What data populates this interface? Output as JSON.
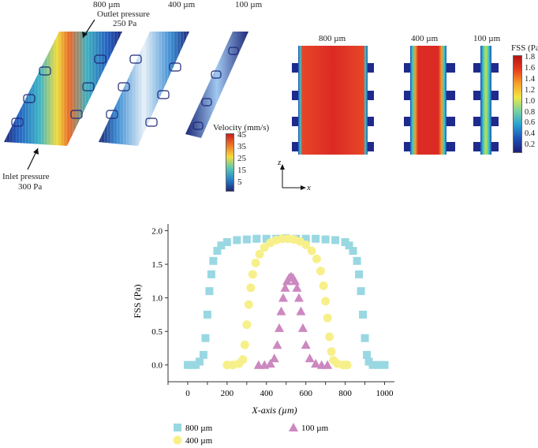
{
  "panel_a": {
    "channel_labels": [
      "800 µm",
      "400 µm",
      "100 µm"
    ],
    "outlet_label_1": "Outlet pressure",
    "outlet_label_2": "250 Pa",
    "inlet_label_1": "Inlet pressure",
    "inlet_label_2": "300 Pa",
    "colorbar_title": "Velocity (mm/s)",
    "colorbar_ticks": [
      "45",
      "35",
      "25",
      "15",
      "5"
    ],
    "colorbar_colors": [
      "#c81e1e",
      "#f07828",
      "#f5dc3c",
      "#5ac8b4",
      "#2882c8",
      "#1e2878"
    ]
  },
  "panel_b": {
    "channel_labels": [
      "800 µm",
      "400 µm",
      "100 µm"
    ],
    "colorbar_title": "FSS (Pa)",
    "colorbar_ticks": [
      "1.8",
      "1.6",
      "1.4",
      "1.2",
      "1.0",
      "0.8",
      "0.6",
      "0.4",
      "0.2"
    ],
    "colorbar_colors": [
      "#b41414",
      "#e63c1e",
      "#f5a028",
      "#f0e646",
      "#78d2a0",
      "#28a0d2",
      "#1e50b4",
      "#1e1e78"
    ],
    "axis_z": "z",
    "axis_x": "x"
  },
  "chart_data": {
    "type": "scatter",
    "title": "",
    "xlabel": "X-axis (µm)",
    "ylabel": "FSS (Pa)",
    "xlim": [
      -100,
      1050
    ],
    "ylim": [
      -0.25,
      2.1
    ],
    "xticks": [
      0,
      200,
      400,
      600,
      800,
      1000
    ],
    "yticks": [
      0.0,
      0.5,
      1.0,
      1.5,
      2.0
    ],
    "xtick_labels": [
      "0",
      "200",
      "400",
      "600",
      "800",
      "1000"
    ],
    "ytick_labels": [
      "0.0",
      "0.5",
      "1.0",
      "1.5",
      "2.0"
    ],
    "legend_position": "bottom",
    "series": [
      {
        "name": "800 µm",
        "marker": "square",
        "color": "#99d8e2",
        "x": [
          0,
          20,
          40,
          60,
          80,
          90,
          100,
          110,
          120,
          130,
          150,
          170,
          200,
          250,
          300,
          350,
          400,
          450,
          500,
          550,
          600,
          650,
          700,
          750,
          800,
          820,
          840,
          860,
          870,
          880,
          890,
          900,
          910,
          920,
          940,
          970,
          1000
        ],
        "y": [
          0.0,
          0.0,
          0.0,
          0.05,
          0.15,
          0.4,
          0.75,
          1.1,
          1.35,
          1.55,
          1.7,
          1.78,
          1.83,
          1.86,
          1.87,
          1.88,
          1.88,
          1.88,
          1.89,
          1.88,
          1.88,
          1.88,
          1.87,
          1.86,
          1.83,
          1.78,
          1.7,
          1.55,
          1.35,
          1.1,
          0.75,
          0.4,
          0.15,
          0.05,
          0.0,
          0.0,
          0.0
        ]
      },
      {
        "name": "400 µm",
        "marker": "circle",
        "color": "#f7f08a",
        "x": [
          200,
          230,
          260,
          280,
          290,
          300,
          310,
          320,
          330,
          345,
          365,
          390,
          420,
          450,
          480,
          510,
          540,
          570,
          600,
          630,
          655,
          675,
          690,
          700,
          710,
          720,
          730,
          740,
          760,
          790,
          810
        ],
        "y": [
          0.0,
          0.0,
          0.02,
          0.08,
          0.3,
          0.6,
          0.9,
          1.15,
          1.35,
          1.52,
          1.65,
          1.75,
          1.82,
          1.86,
          1.88,
          1.88,
          1.87,
          1.84,
          1.79,
          1.7,
          1.58,
          1.4,
          1.18,
          0.95,
          0.7,
          0.42,
          0.2,
          0.07,
          0.02,
          0.0,
          0.0
        ]
      },
      {
        "name": "100 µm",
        "marker": "triangle",
        "color": "#cc88c0",
        "x": [
          360,
          390,
          420,
          440,
          455,
          465,
          475,
          485,
          495,
          505,
          515,
          525,
          535,
          545,
          555,
          565,
          575,
          585,
          600,
          620,
          650,
          680,
          710
        ],
        "y": [
          0.0,
          0.0,
          0.02,
          0.1,
          0.3,
          0.55,
          0.8,
          1.0,
          1.15,
          1.25,
          1.3,
          1.32,
          1.3,
          1.25,
          1.15,
          1.0,
          0.8,
          0.55,
          0.3,
          0.1,
          0.02,
          0.0,
          0.0
        ]
      }
    ]
  }
}
